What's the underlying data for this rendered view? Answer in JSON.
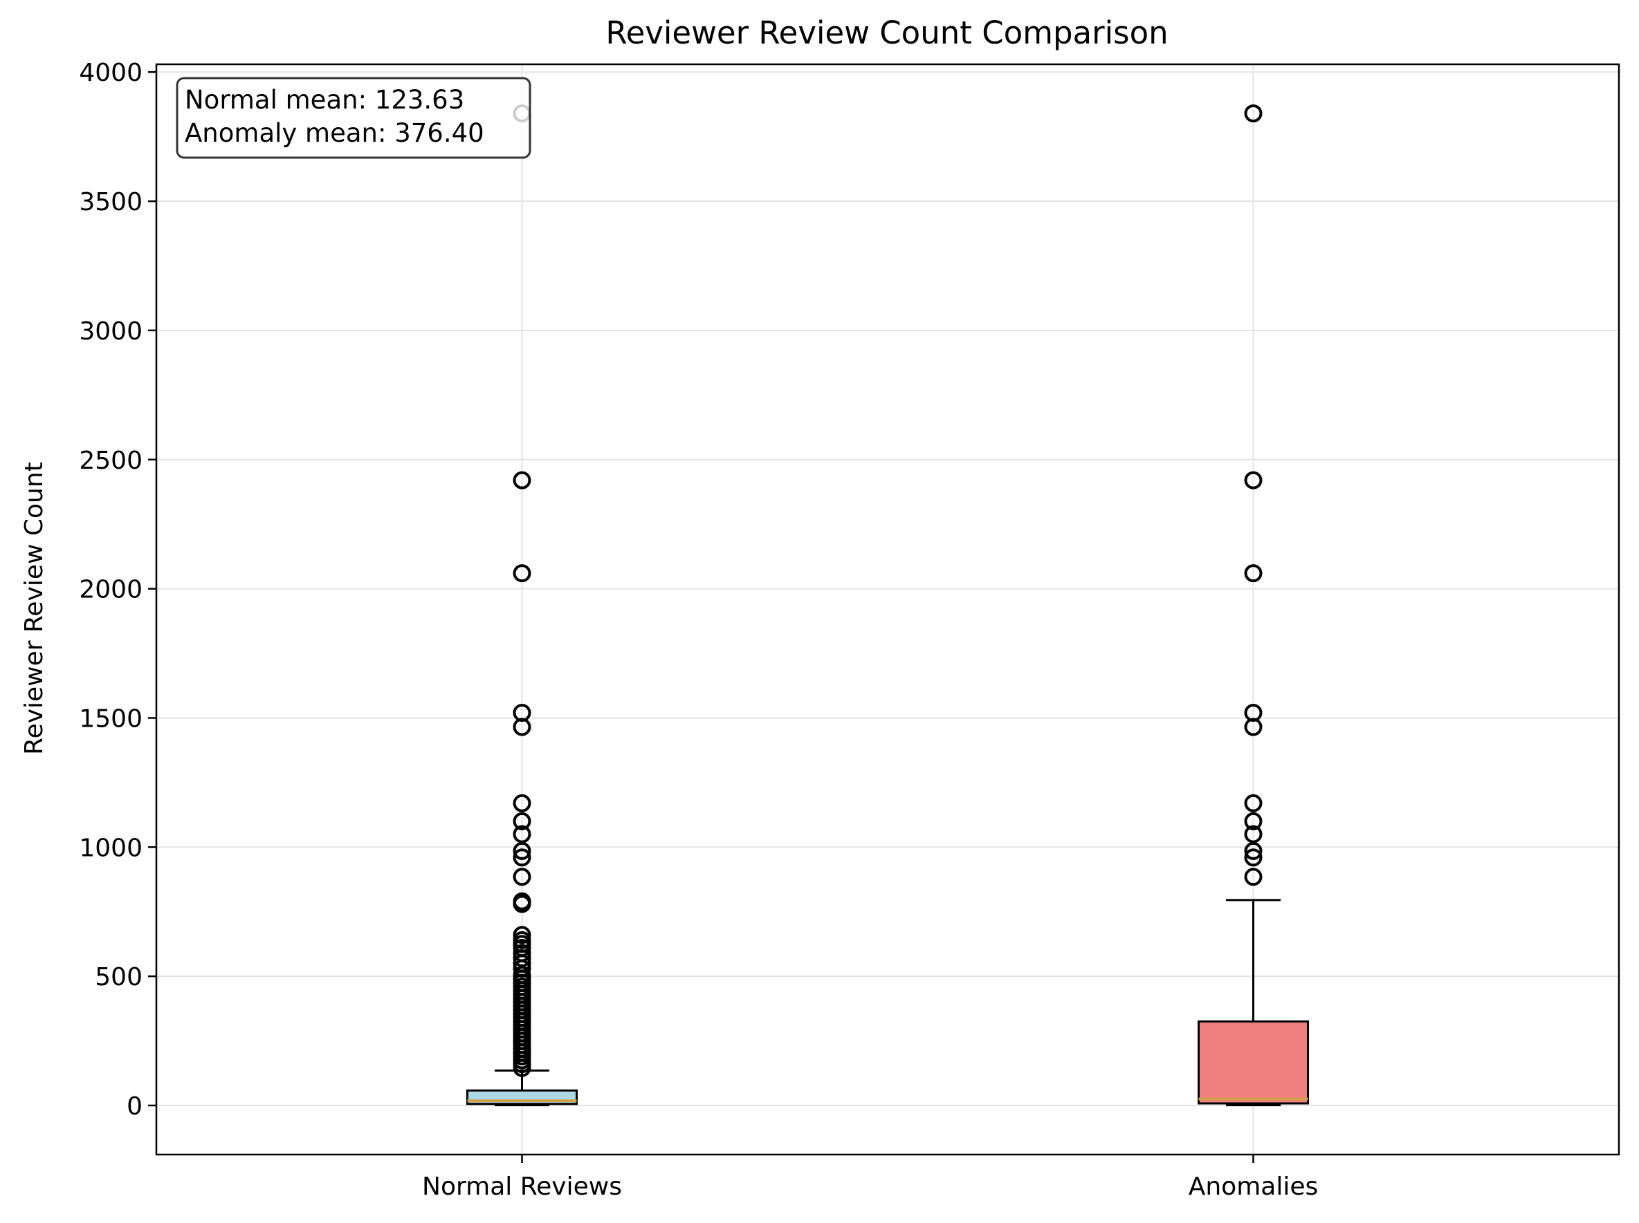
{
  "chart_data": {
    "type": "box",
    "title": "Reviewer Review Count Comparison",
    "xlabel": "",
    "ylabel": "Reviewer Review Count",
    "ylim": [
      -190,
      4030
    ],
    "yticks": [
      0,
      500,
      1000,
      1500,
      2000,
      2500,
      3000,
      3500,
      4000
    ],
    "grid": true,
    "categories": [
      "Normal Reviews",
      "Anomalies"
    ],
    "boxes": [
      {
        "name": "Normal Reviews",
        "whisker_low": 1,
        "q1": 6,
        "median": 18,
        "q3": 58,
        "whisker_high": 135,
        "fill": "#add8e6",
        "outliers": [
          3840,
          2420,
          2060,
          1520,
          1465,
          1170,
          1100,
          1050,
          985,
          960,
          885,
          790,
          780,
          660,
          640,
          625,
          610,
          590,
          570,
          550,
          530,
          505,
          490,
          475,
          460,
          445,
          430,
          415,
          400,
          385,
          370,
          355,
          340,
          325,
          310,
          295,
          280,
          265,
          250,
          235,
          220,
          205,
          190,
          175,
          160,
          145
        ]
      },
      {
        "name": "Anomalies",
        "whisker_low": 1,
        "q1": 8,
        "median": 25,
        "q3": 325,
        "whisker_high": 795,
        "fill": "#f08080",
        "outliers": [
          3840,
          2420,
          2060,
          1520,
          1465,
          1170,
          1100,
          1050,
          985,
          960,
          885
        ]
      }
    ],
    "median_color": "#d4a24c",
    "annotation": {
      "lines": [
        "Normal mean: 123.63",
        "Anomaly mean: 376.40"
      ],
      "placement": "top-left"
    }
  }
}
